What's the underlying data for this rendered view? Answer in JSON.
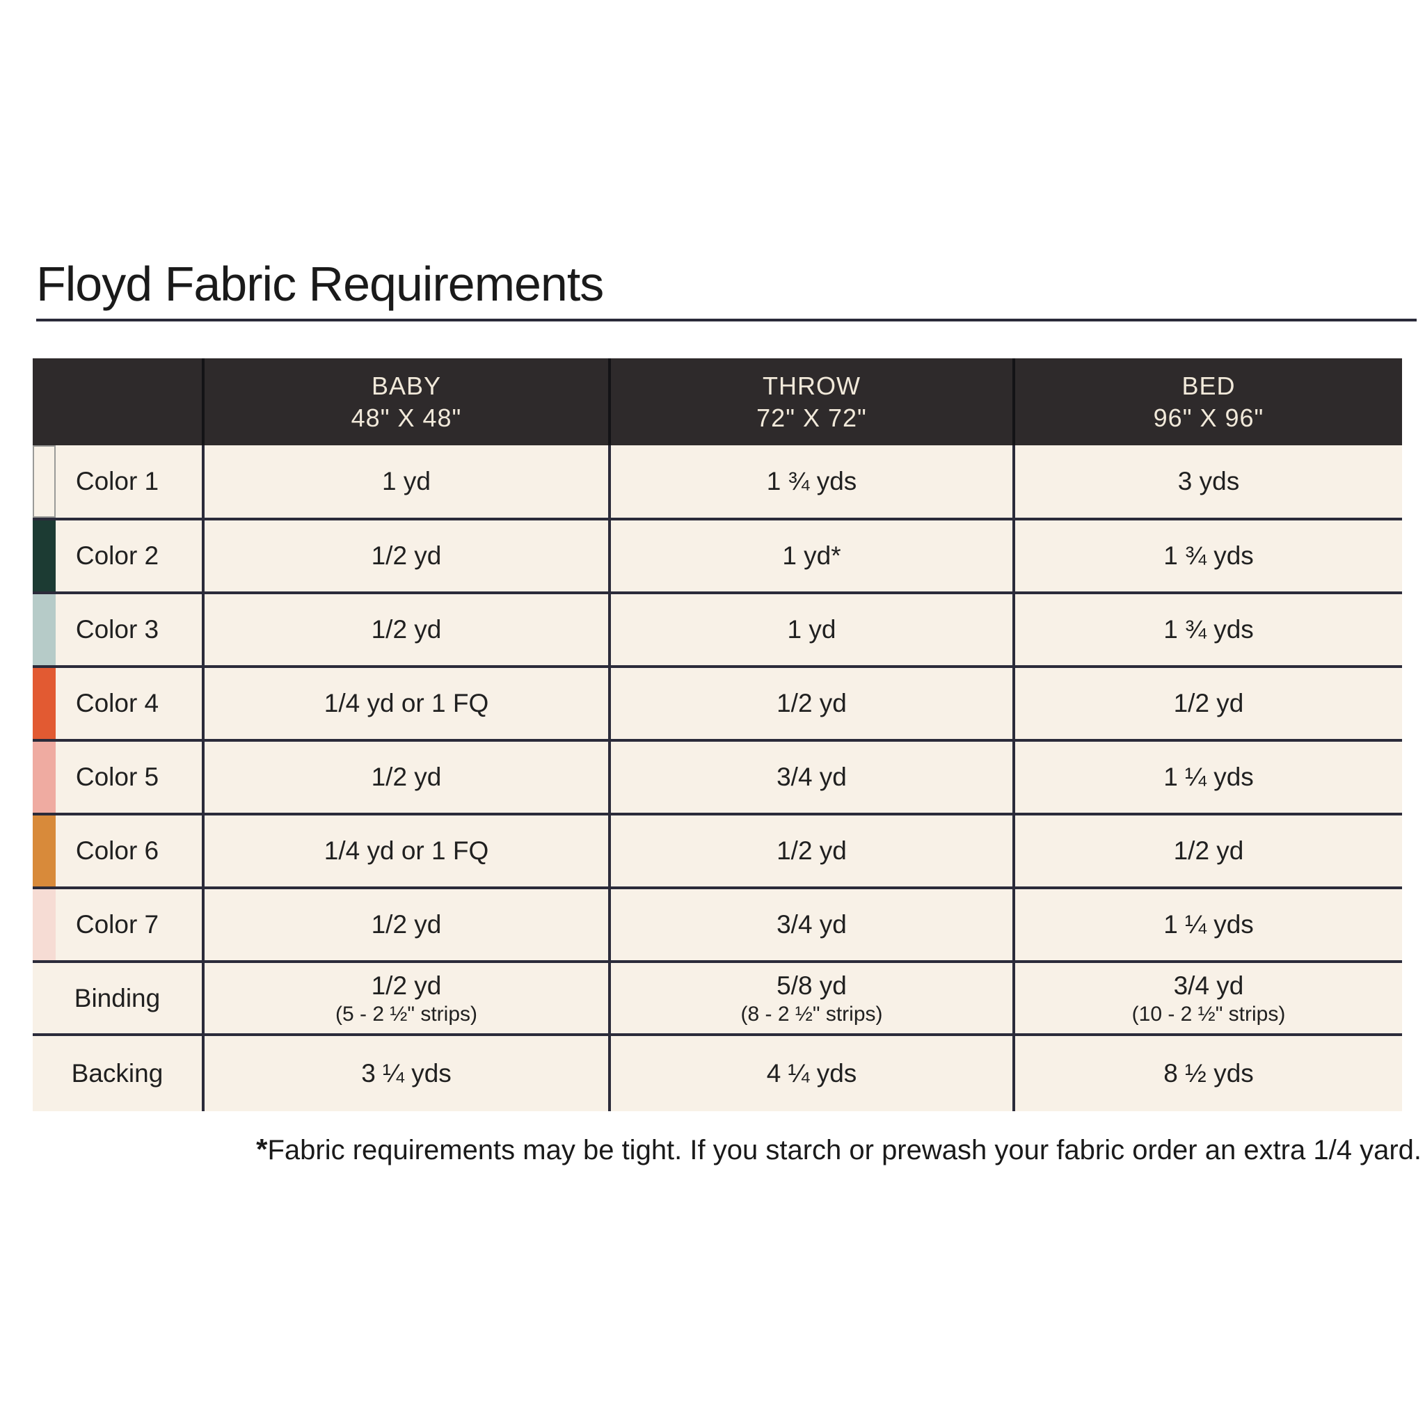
{
  "colors": {
    "page-bg": "#ffffff",
    "table-bg": "#f8f1e7",
    "header-bg": "#2e2a2b",
    "header-text": "#f1e9da",
    "divider": "#2b2b3a",
    "cell-text": "#202020",
    "title-text": "#1a1a1a"
  },
  "page": {
    "title": "Floyd Fabric Requirements",
    "footnote_star": "*",
    "footnote_text": "Fabric requirements may be tight. If you starch or prewash your fabric order an extra 1/4 yard."
  },
  "table": {
    "columns": [
      {
        "name": "",
        "size": ""
      },
      {
        "name": "BABY",
        "size": "48\" X 48\""
      },
      {
        "name": "THROW",
        "size": "72\" X 72\""
      },
      {
        "name": "BED",
        "size": "96\" X 96\""
      }
    ],
    "rows": [
      {
        "label": "Color 1",
        "swatch": "#f8f1e7",
        "swatch_border": "#9a9a98",
        "baby": "1 yd",
        "throw": "1 ¾ yds",
        "bed": "3 yds"
      },
      {
        "label": "Color 2",
        "swatch": "#1c3b33",
        "baby": "1/2 yd",
        "throw": "1 yd*",
        "bed": "1 ¾ yds"
      },
      {
        "label": "Color 3",
        "swatch": "#b6cbc8",
        "baby": "1/2 yd",
        "throw": "1 yd",
        "bed": "1 ¾ yds"
      },
      {
        "label": "Color 4",
        "swatch": "#e25a32",
        "baby": "1/4 yd or 1 FQ",
        "throw": "1/2 yd",
        "bed": "1/2 yd"
      },
      {
        "label": "Color 5",
        "swatch": "#efaba1",
        "baby": "1/2 yd",
        "throw": "3/4 yd",
        "bed": "1 ¼ yds"
      },
      {
        "label": "Color 6",
        "swatch": "#d88a3a",
        "baby": "1/4 yd or 1 FQ",
        "throw": "1/2 yd",
        "bed": "1/2 yd"
      },
      {
        "label": "Color 7",
        "swatch": "#f6dcd4",
        "baby": "1/2 yd",
        "throw": "3/4 yd",
        "bed": "1 ¼ yds"
      },
      {
        "label": "Binding",
        "baby": "1/2 yd",
        "baby_sub": "(5 - 2 ½\" strips)",
        "throw": "5/8 yd",
        "throw_sub": "(8 - 2 ½\" strips)",
        "bed": "3/4 yd",
        "bed_sub": "(10 - 2 ½\" strips)"
      },
      {
        "label": "Backing",
        "baby": "3 ¼ yds",
        "throw": "4 ¼ yds",
        "bed": "8 ½ yds"
      }
    ]
  }
}
